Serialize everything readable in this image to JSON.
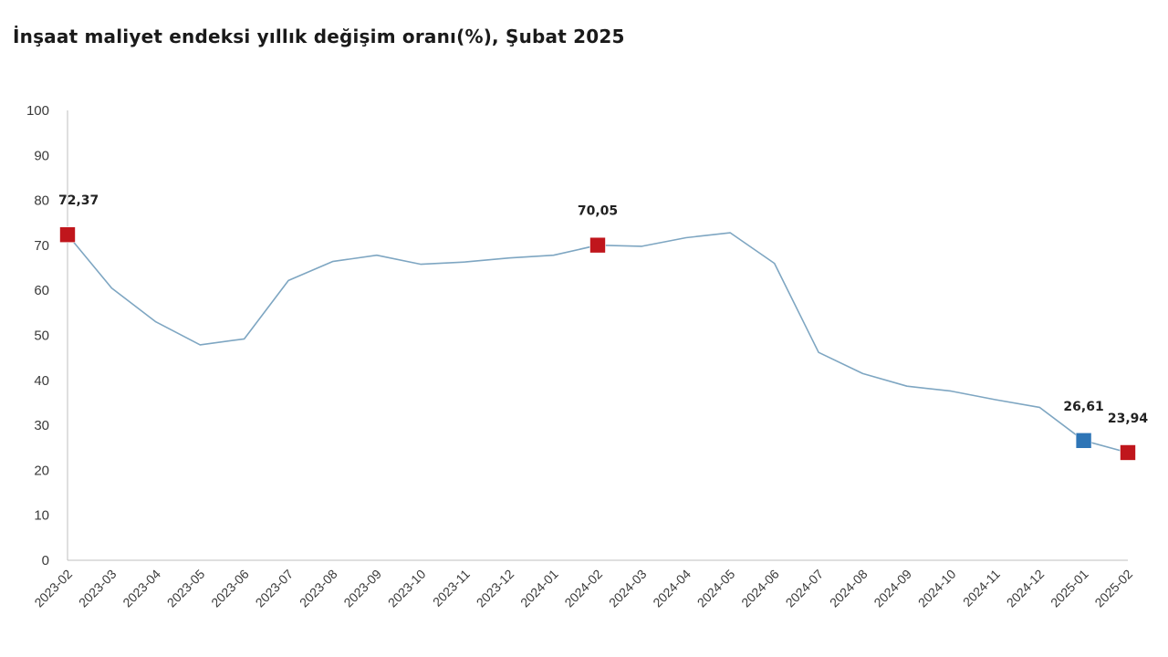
{
  "chart_data": {
    "type": "line",
    "title": "İnşaat maliyet endeksi yıllık değişim oranı(%), Şubat 2025",
    "xlabel": "",
    "ylabel": "",
    "ylim": [
      0,
      100
    ],
    "yticks": [
      0,
      10,
      20,
      30,
      40,
      50,
      60,
      70,
      80,
      90,
      100
    ],
    "grid": false,
    "legend": "none",
    "categories": [
      "2023-02",
      "2023-03",
      "2023-04",
      "2023-05",
      "2023-06",
      "2023-07",
      "2023-08",
      "2023-09",
      "2023-10",
      "2023-11",
      "2023-12",
      "2024-01",
      "2024-02",
      "2024-03",
      "2024-04",
      "2024-05",
      "2024-06",
      "2024-07",
      "2024-08",
      "2024-09",
      "2024-10",
      "2024-11",
      "2024-12",
      "2025-01",
      "2025-02"
    ],
    "series": [
      {
        "values": [
          72.37,
          60.5,
          53.0,
          47.9,
          49.2,
          62.2,
          66.4,
          67.8,
          65.8,
          66.3,
          67.2,
          67.8,
          70.05,
          69.8,
          71.7,
          72.8,
          66.0,
          46.2,
          41.5,
          38.7,
          37.6,
          35.7,
          34.0,
          26.61,
          23.94
        ]
      }
    ],
    "highlighted_points": [
      {
        "category": "2023-02",
        "value": 72.37,
        "label": "72,37",
        "color": "#c0161c"
      },
      {
        "category": "2024-02",
        "value": 70.05,
        "label": "70,05",
        "color": "#c0161c"
      },
      {
        "category": "2025-01",
        "value": 26.61,
        "label": "26,61",
        "color": "#2e75b6"
      },
      {
        "category": "2025-02",
        "value": 23.94,
        "label": "23,94",
        "color": "#c0161c"
      }
    ],
    "colors": {
      "line": "#7ea6c2",
      "axis": "#bfbfbf"
    }
  }
}
